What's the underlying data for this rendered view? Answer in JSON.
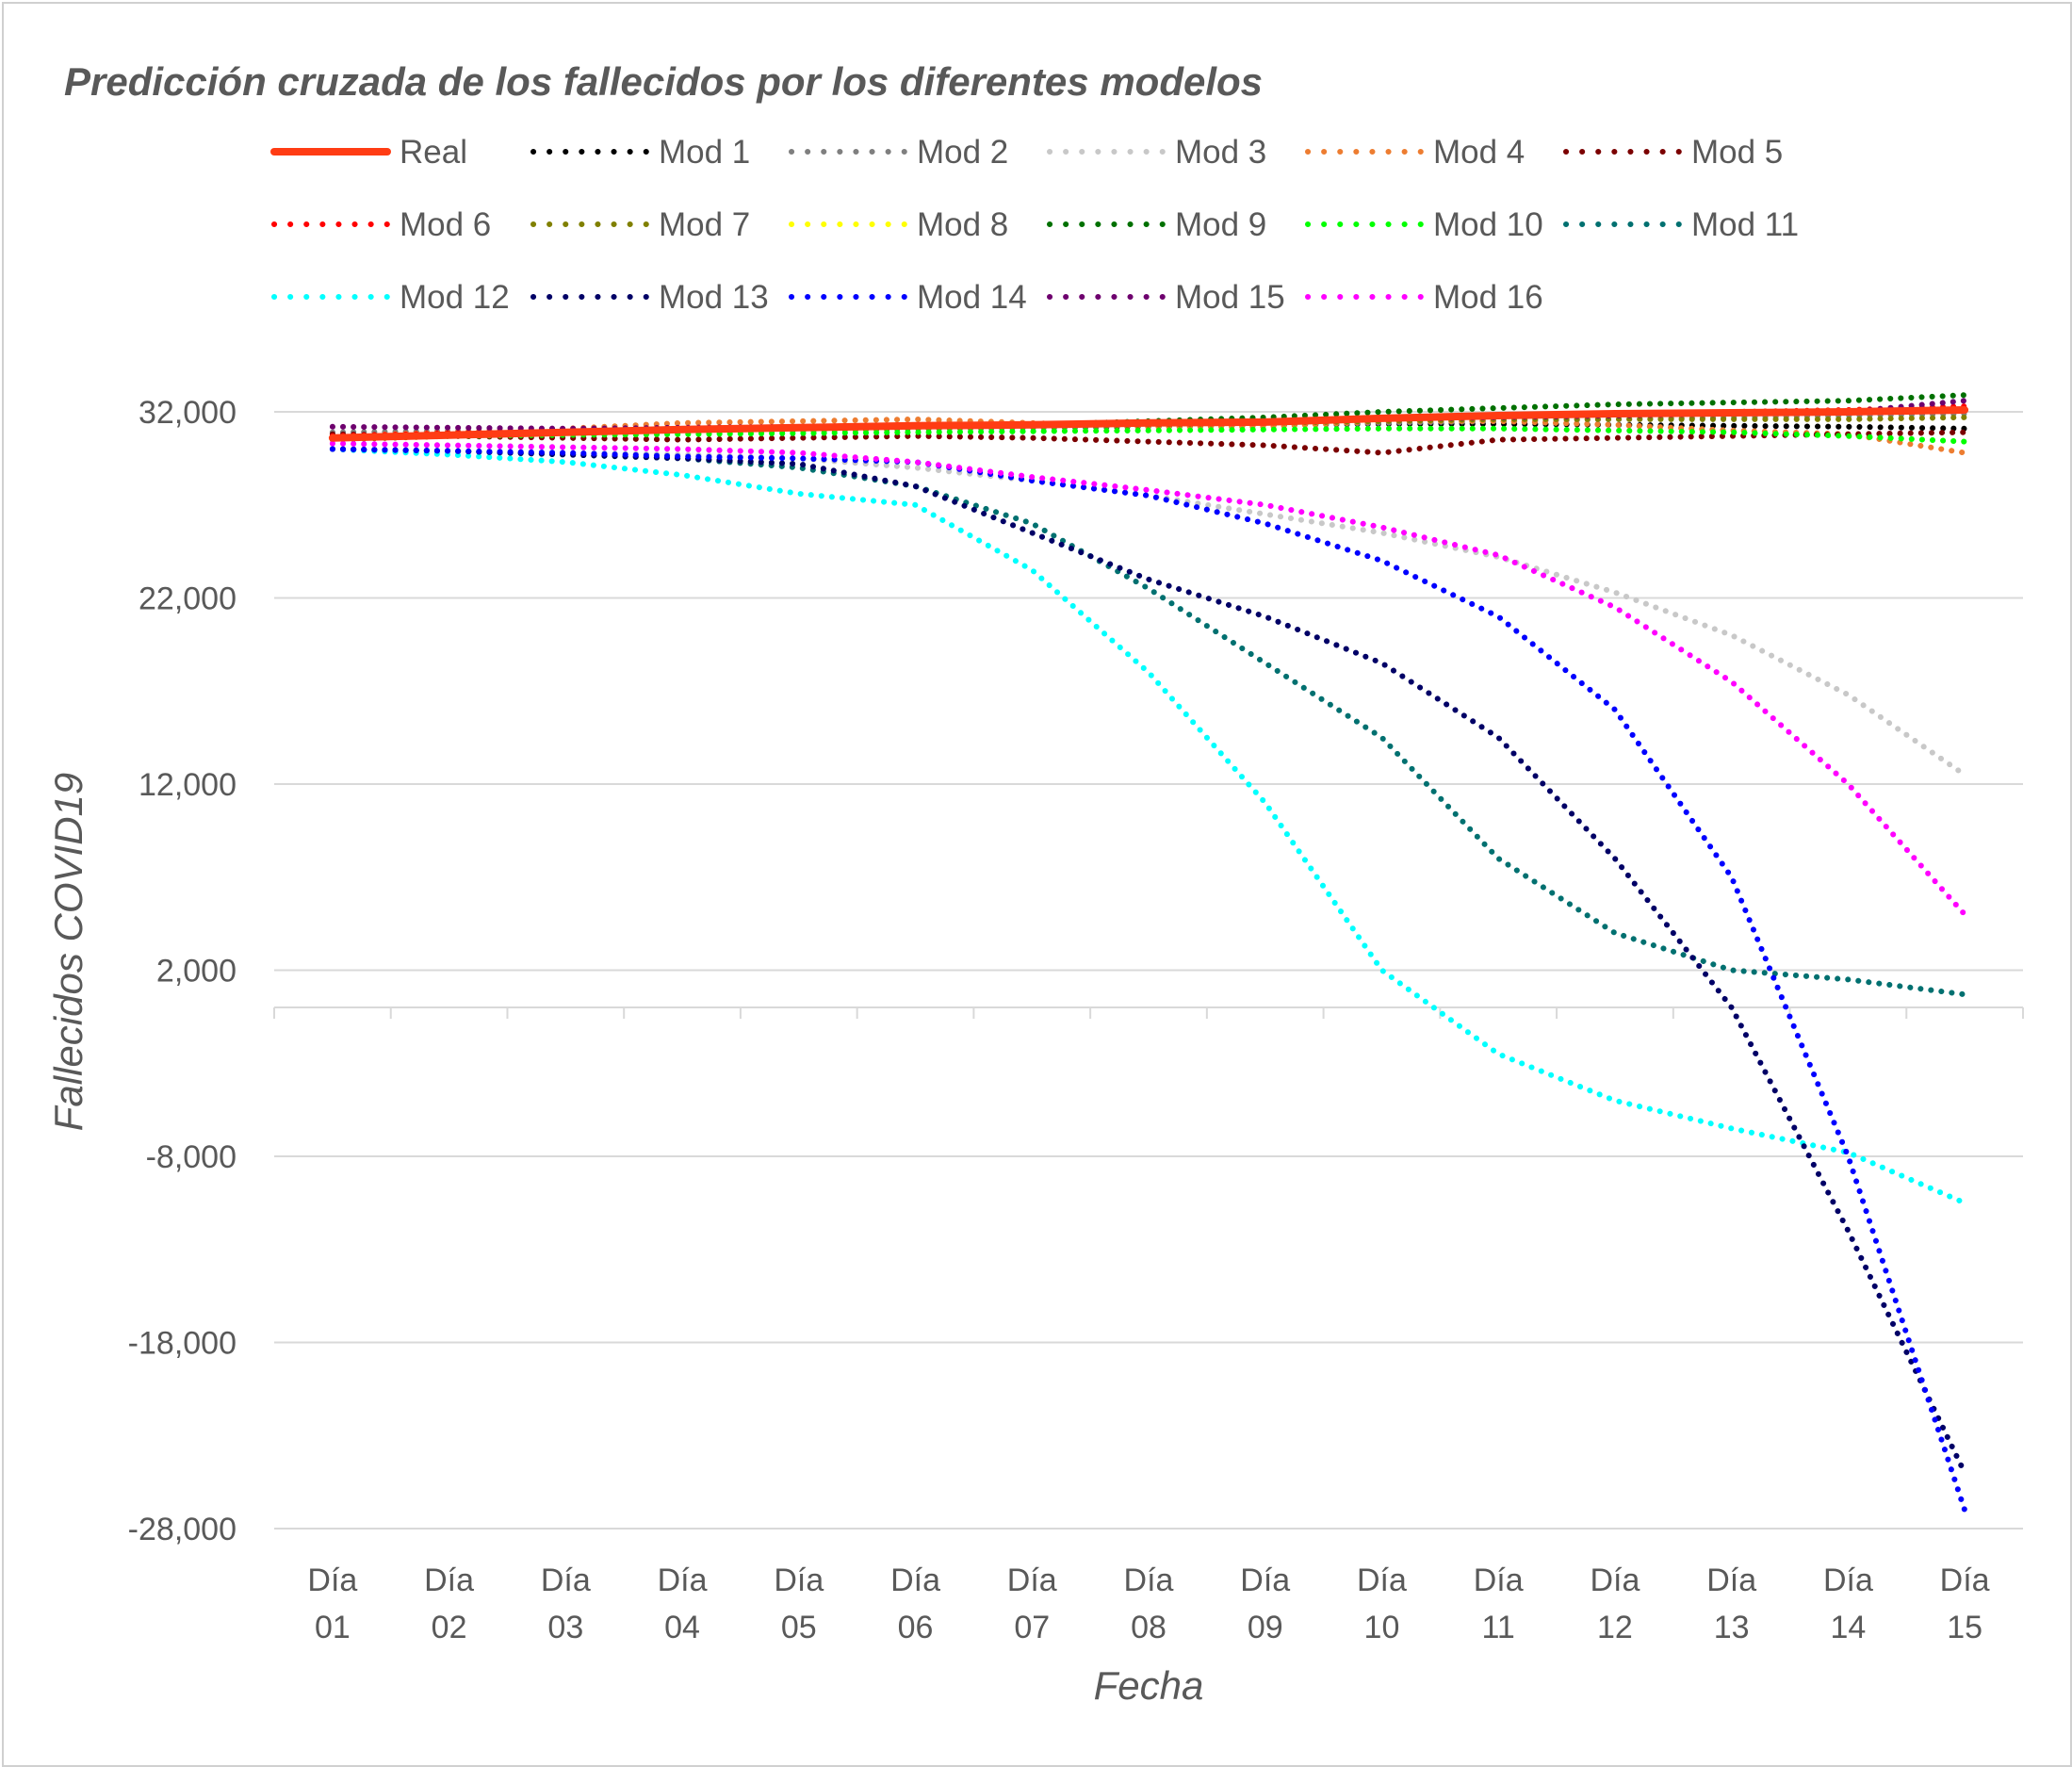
{
  "chart_data": {
    "type": "line",
    "title": "Predicción cruzada de los fallecidos por los diferentes modelos",
    "xlabel": "Fecha",
    "ylabel": "Fallecidos COVID19",
    "ylim": [
      -28000,
      32000
    ],
    "yticks": [
      32000,
      22000,
      12000,
      2000,
      -8000,
      -18000,
      -28000
    ],
    "ytick_labels": [
      "32,000",
      "22,000",
      "12,000",
      "2,000",
      "-8,000",
      "-18,000",
      "-28,000"
    ],
    "grid": true,
    "legend_position": "top",
    "categories": [
      "Día 01",
      "Día 02",
      "Día 03",
      "Día 04",
      "Día 05",
      "Día 06",
      "Día 07",
      "Día 08",
      "Día 09",
      "Día 10",
      "Día 11",
      "Día 12",
      "Día 13",
      "Día 14",
      "Día 15"
    ],
    "category_lines": [
      [
        "Día",
        "01"
      ],
      [
        "Día",
        "02"
      ],
      [
        "Día",
        "03"
      ],
      [
        "Día",
        "04"
      ],
      [
        "Día",
        "05"
      ],
      [
        "Día",
        "06"
      ],
      [
        "Día",
        "07"
      ],
      [
        "Día",
        "08"
      ],
      [
        "Día",
        "09"
      ],
      [
        "Día",
        "10"
      ],
      [
        "Día",
        "11"
      ],
      [
        "Día",
        "12"
      ],
      [
        "Día",
        "13"
      ],
      [
        "Día",
        "14"
      ],
      [
        "Día",
        "15"
      ]
    ],
    "series": [
      {
        "name": "Real",
        "color": "#FF3C14",
        "style": "solid",
        "values": [
          30600,
          30750,
          30900,
          31050,
          31150,
          31250,
          31300,
          31400,
          31450,
          31650,
          31800,
          31900,
          31950,
          32000,
          32100
        ]
      },
      {
        "name": "Mod 1",
        "color": "#000000",
        "style": "dotted",
        "values": [
          30700,
          30800,
          30850,
          30950,
          31000,
          31100,
          31150,
          31200,
          31300,
          31350,
          31350,
          31300,
          31250,
          31200,
          31100
        ]
      },
      {
        "name": "Mod 2",
        "color": "#7F7F7F",
        "style": "dotted",
        "values": [
          30900,
          30950,
          31000,
          31050,
          31100,
          31100,
          31150,
          31250,
          31300,
          31400,
          31500,
          31600,
          31700,
          31800,
          31900
        ]
      },
      {
        "name": "Mod 3",
        "color": "#C8C8C8",
        "style": "dotted",
        "values": [
          30000,
          29900,
          29800,
          29700,
          29500,
          29000,
          28300,
          27500,
          26500,
          25500,
          24200,
          22300,
          20000,
          16800,
          12500
        ]
      },
      {
        "name": "Mod 4",
        "color": "#ED7D31",
        "style": "dotted",
        "values": [
          30700,
          30900,
          31100,
          31400,
          31500,
          31600,
          31400,
          31200,
          31200,
          31500,
          31500,
          31300,
          31000,
          30800,
          29800
        ]
      },
      {
        "name": "Mod 5",
        "color": "#7B0000",
        "style": "dotted",
        "values": [
          30800,
          30700,
          30600,
          30500,
          30600,
          30700,
          30600,
          30400,
          30200,
          29800,
          30500,
          30600,
          30700,
          30800,
          30900
        ]
      },
      {
        "name": "Mod 6",
        "color": "#FF0000",
        "style": "dotted",
        "values": [
          30700,
          30850,
          31000,
          31100,
          31200,
          31300,
          31300,
          31400,
          31500,
          31700,
          31800,
          31900,
          32000,
          32100,
          32300
        ]
      },
      {
        "name": "Mod 7",
        "color": "#808000",
        "style": "dotted",
        "values": [
          30500,
          30700,
          30800,
          30900,
          31000,
          31100,
          31200,
          31300,
          31400,
          31500,
          31600,
          31600,
          31600,
          31600,
          31700
        ]
      },
      {
        "name": "Mod 8",
        "color": "#FFFF00",
        "style": "dotted",
        "values": [
          30600,
          30750,
          30900,
          31050,
          31150,
          31250,
          31300,
          31400,
          31500,
          31650,
          31800,
          31900,
          32000,
          32050,
          32150
        ]
      },
      {
        "name": "Mod 9",
        "color": "#007000",
        "style": "dotted",
        "values": [
          30600,
          30800,
          30900,
          31000,
          31100,
          31200,
          31300,
          31500,
          31700,
          32000,
          32200,
          32400,
          32500,
          32600,
          32900
        ]
      },
      {
        "name": "Mod 10",
        "color": "#00FF00",
        "style": "dotted",
        "values": [
          30600,
          30700,
          30750,
          30800,
          30850,
          30900,
          30950,
          31000,
          31050,
          31100,
          31100,
          31000,
          30900,
          30700,
          30400
        ]
      },
      {
        "name": "Mod 11",
        "color": "#007070",
        "style": "dotted",
        "values": [
          30000,
          29900,
          29700,
          29500,
          29000,
          28000,
          26000,
          22500,
          18500,
          14500,
          8000,
          4000,
          2000,
          1500,
          700
        ]
      },
      {
        "name": "Mod 12",
        "color": "#00FFFF",
        "style": "dotted",
        "values": [
          30000,
          29700,
          29300,
          28600,
          27600,
          27000,
          23500,
          18000,
          11000,
          2000,
          -2500,
          -5000,
          -6500,
          -7800,
          -10500
        ]
      },
      {
        "name": "Mod 13",
        "color": "#000066",
        "style": "dotted",
        "values": [
          30000,
          29900,
          29700,
          29500,
          29200,
          28000,
          25500,
          23000,
          21000,
          18500,
          14500,
          8000,
          0,
          -12000,
          -25000
        ]
      },
      {
        "name": "Mod 14",
        "color": "#0000FF",
        "style": "dotted",
        "values": [
          30000,
          29900,
          29800,
          29600,
          29500,
          29300,
          28300,
          27500,
          26000,
          24000,
          21000,
          16000,
          7000,
          -8000,
          -27000
        ]
      },
      {
        "name": "Mod 15",
        "color": "#6E006E",
        "style": "dotted",
        "values": [
          31200,
          31150,
          31100,
          31150,
          31200,
          31250,
          31300,
          31400,
          31500,
          31600,
          31700,
          31800,
          31900,
          32000,
          32600
        ]
      },
      {
        "name": "Mod 16",
        "color": "#FF00FF",
        "style": "dotted",
        "values": [
          30300,
          30200,
          30100,
          30000,
          29800,
          29300,
          28500,
          27800,
          27000,
          25800,
          24300,
          21500,
          17500,
          12000,
          5000
        ]
      }
    ]
  }
}
